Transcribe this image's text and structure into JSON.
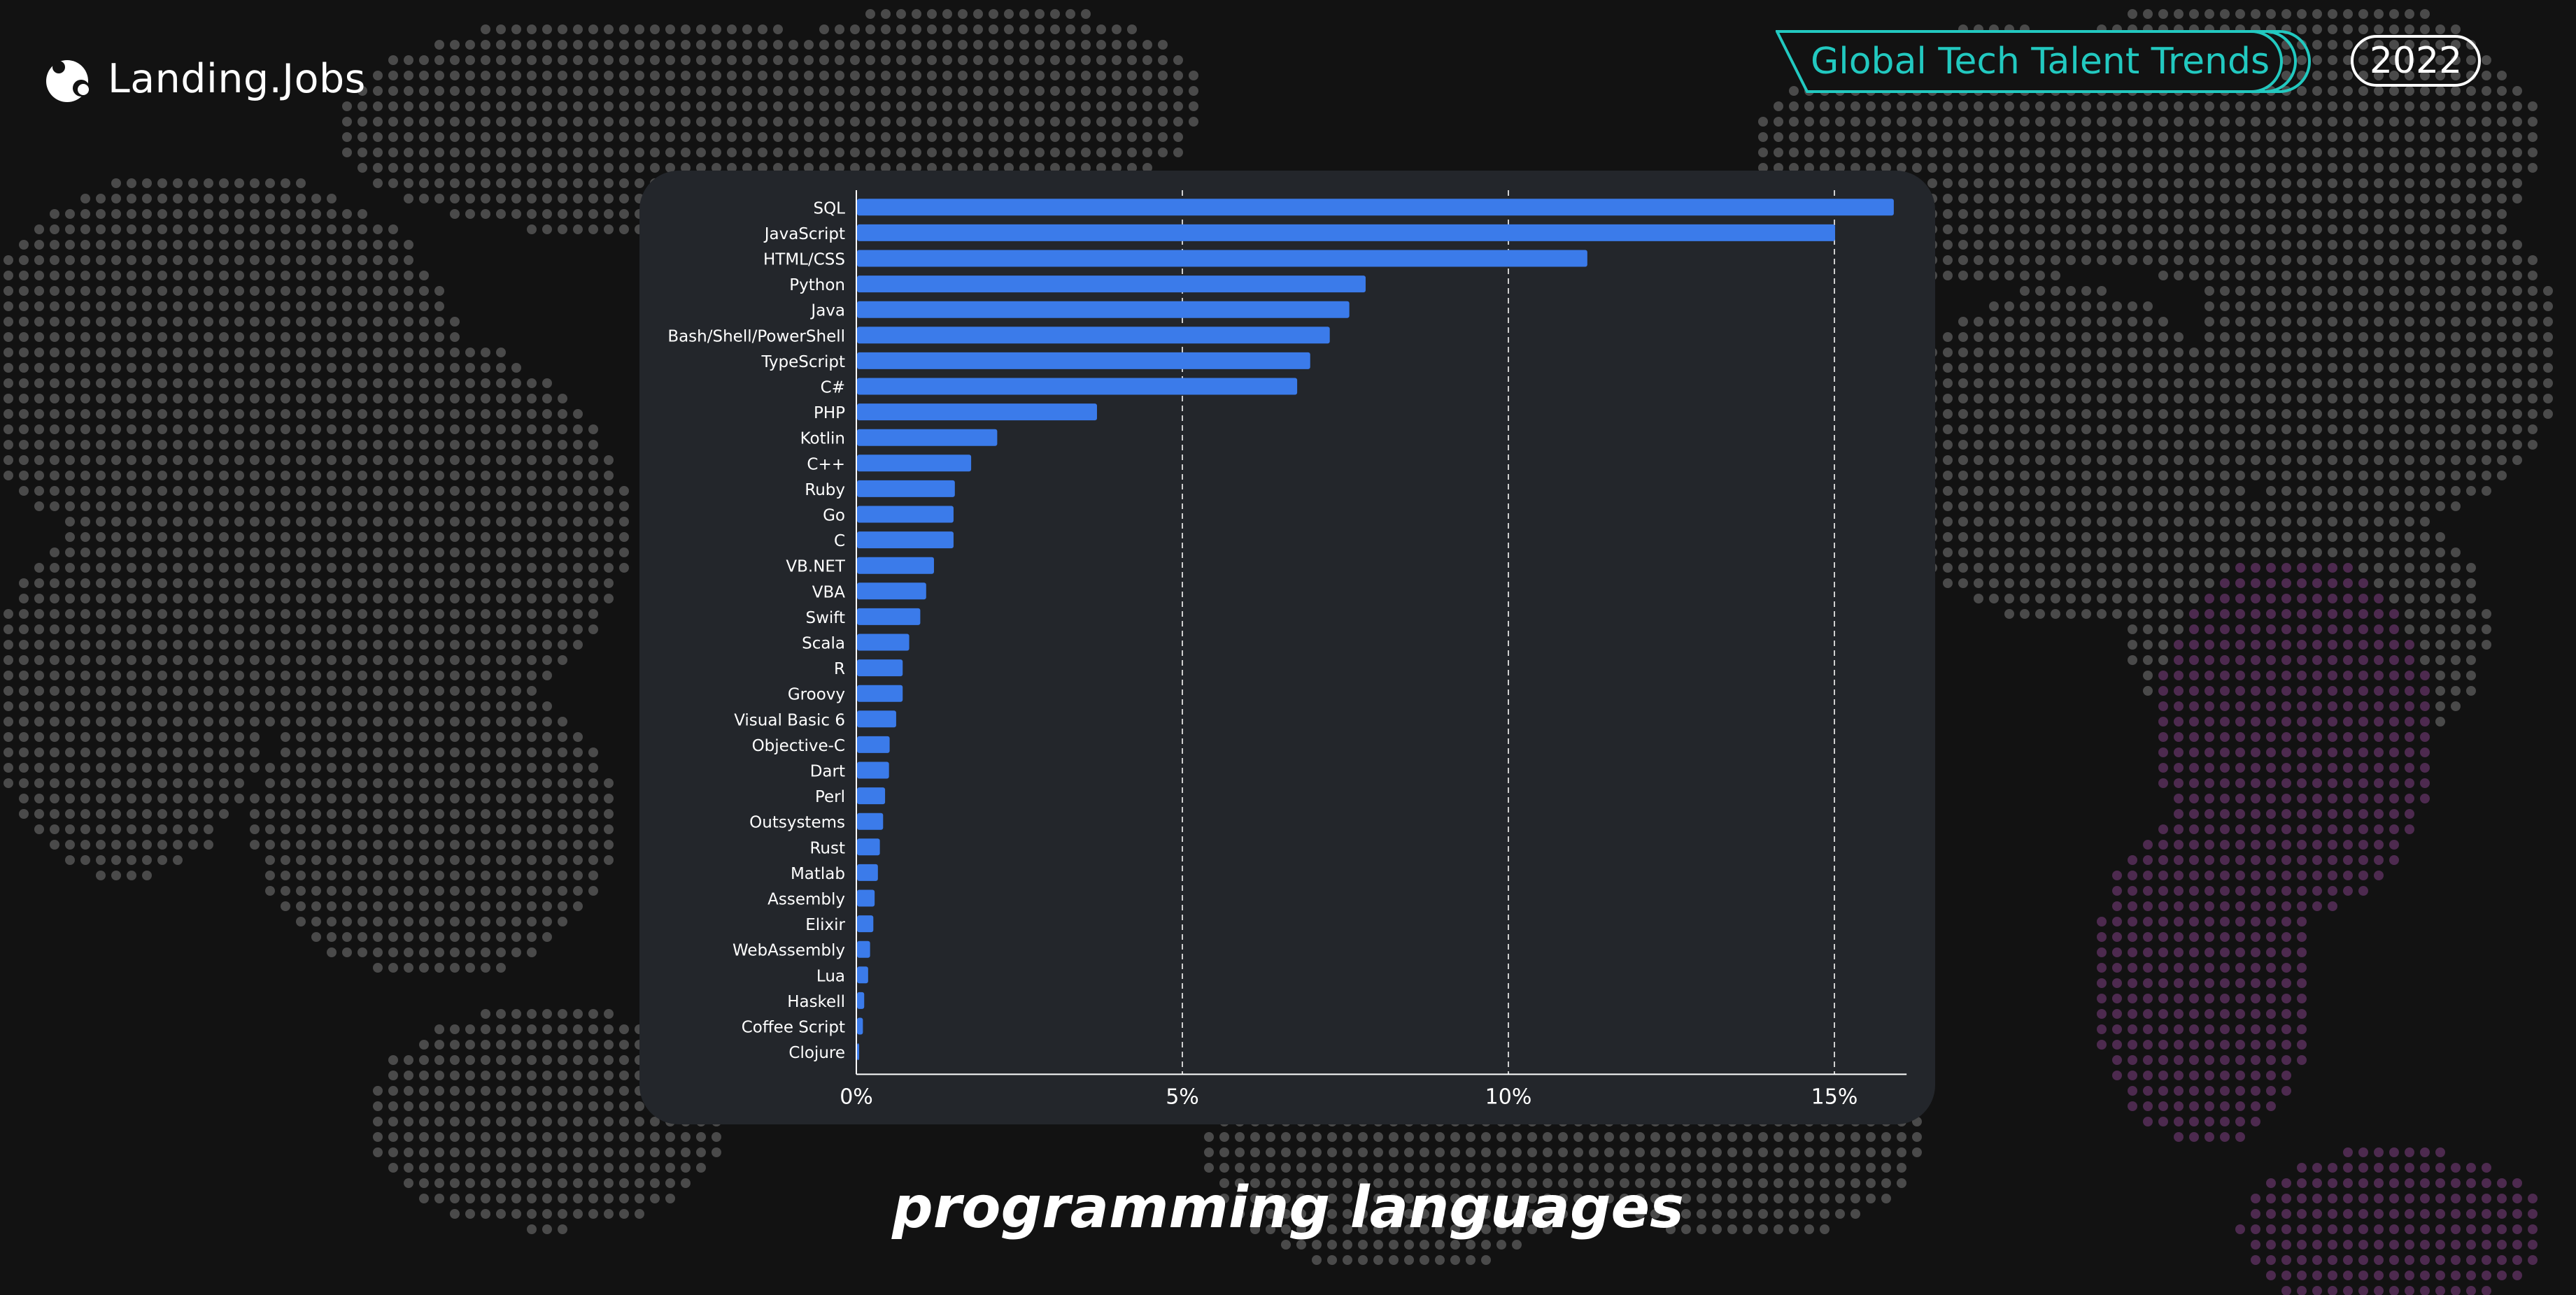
{
  "header": {
    "logo_text": "Landing.Jobs",
    "badge_text": "Global Tech Talent Trends",
    "year": "2022"
  },
  "footer": {
    "title": "programming languages"
  },
  "colors": {
    "background": "#121212",
    "panel": "#23262b",
    "bar": "#3b7bea",
    "accent": "#22c9c0",
    "map_dots": "#4a4a4a",
    "map_dots_magenta": "#4d2a4f"
  },
  "icons": {
    "logo": "landing-jobs-logo-icon",
    "badge": "stacked-badge-icon"
  },
  "chart_data": {
    "type": "bar",
    "orientation": "horizontal",
    "categories": [
      "SQL",
      "JavaScript",
      "HTML/CSS",
      "Python",
      "Java",
      "Bash/Shell/PowerShell",
      "TypeScript",
      "C#",
      "PHP",
      "Kotlin",
      "C++",
      "Ruby",
      "Go",
      "C",
      "VB.NET",
      "VBA",
      "Swift",
      "Scala",
      "R",
      "Groovy",
      "Visual Basic 6",
      "Objective-C",
      "Dart",
      "Perl",
      "Outsystems",
      "Rust",
      "Matlab",
      "Assembly",
      "Elixir",
      "WebAssembly",
      "Lua",
      "Haskell",
      "Coffee Script",
      "Clojure"
    ],
    "values": [
      15.9,
      15.0,
      11.2,
      7.8,
      7.55,
      7.25,
      6.95,
      6.75,
      3.68,
      2.15,
      1.75,
      1.5,
      1.48,
      1.48,
      1.18,
      1.06,
      0.97,
      0.8,
      0.7,
      0.7,
      0.6,
      0.5,
      0.49,
      0.43,
      0.4,
      0.35,
      0.32,
      0.27,
      0.25,
      0.2,
      0.17,
      0.11,
      0.09,
      0.03
    ],
    "xlim": [
      0,
      16
    ],
    "xticks": [
      0,
      5,
      10,
      15
    ],
    "xtick_labels": [
      "0%",
      "5%",
      "10%",
      "15%"
    ],
    "grid": "vertical dashed",
    "title": "",
    "xlabel": "",
    "ylabel": ""
  }
}
